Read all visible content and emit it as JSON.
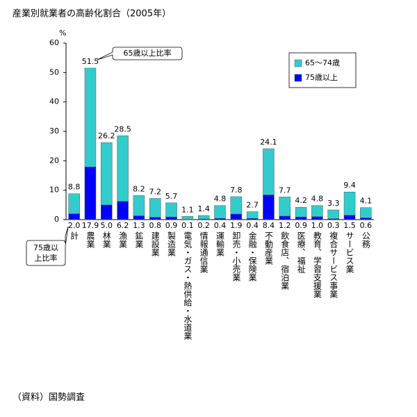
{
  "chart_data": {
    "type": "stacked_bar",
    "title": "産業別就業者の高齢化割合（2005年）",
    "source": "（資料）国勢調査",
    "y_unit": "%",
    "categories": [
      "計",
      "農業",
      "林業",
      "漁業",
      "鉱業",
      "建設業",
      "製造業",
      "電気・ガス・熱供給・水道業",
      "情報通信業",
      "運輸業",
      "卸売・小売業",
      "金融・保険業",
      "不動産業",
      "飲食店、宿泊業",
      "医療、福祉",
      "教育、学習支援業",
      "複合サービス事業",
      "サービス業",
      "公務"
    ],
    "series": [
      {
        "name": "75歳以上",
        "color": "#0000ff",
        "values": [
          2.0,
          17.9,
          5.0,
          6.2,
          1.3,
          0.8,
          0.9,
          0.1,
          0.2,
          0.4,
          1.9,
          0.4,
          8.4,
          1.2,
          0.9,
          1.0,
          0.3,
          1.5,
          0.6
        ],
        "value_labels": [
          "2.0",
          "17.9",
          "5.0",
          "6.2",
          "1.3",
          "0.8",
          "0.9",
          "0.1",
          "0.2",
          "0.4",
          "1.9",
          "0.4",
          "8.4",
          "1.2",
          "0.9",
          "1.0",
          "0.3",
          "1.5",
          "0.6"
        ]
      },
      {
        "name": "65～74歳",
        "color": "#33cccc",
        "values": [
          6.8,
          33.6,
          21.2,
          22.3,
          6.9,
          6.4,
          4.8,
          1.0,
          1.2,
          4.4,
          5.9,
          2.3,
          15.7,
          6.5,
          3.3,
          3.8,
          3.0,
          7.9,
          3.5
        ]
      }
    ],
    "totals": [
      8.8,
      51.5,
      26.2,
      28.5,
      8.2,
      7.2,
      5.7,
      1.1,
      1.4,
      4.8,
      7.8,
      2.7,
      24.1,
      7.7,
      4.2,
      4.8,
      3.3,
      9.4,
      4.1
    ],
    "totals_note": "65歳以上比率",
    "lower_note": [
      "75歳以",
      "上比率"
    ],
    "ylim": [
      0,
      60
    ],
    "yticks": [
      0,
      10,
      20,
      30,
      40,
      50,
      60
    ],
    "grid": false
  }
}
